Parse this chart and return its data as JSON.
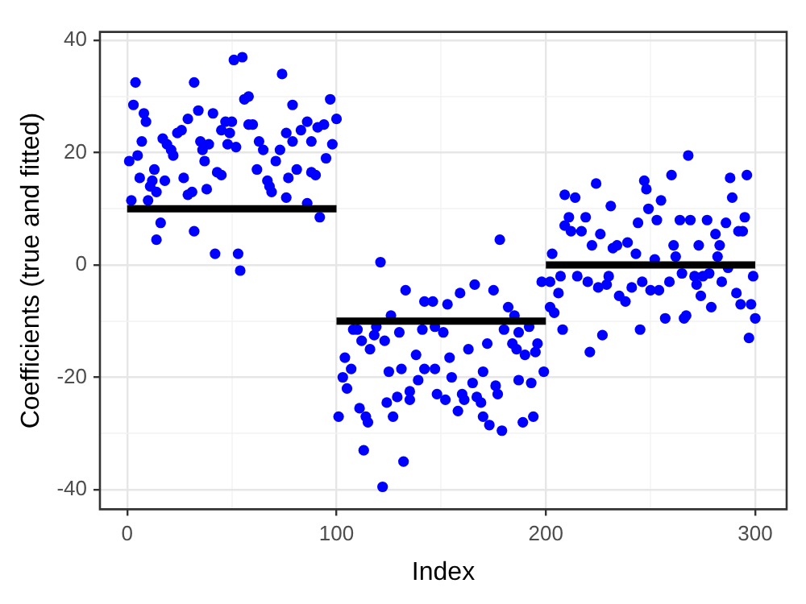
{
  "chart_data": {
    "type": "scatter",
    "xlabel": "Index",
    "ylabel": "Coefficients (true and fitted)",
    "xlim": [
      -13,
      315
    ],
    "ylim": [
      -43.5,
      41.5
    ],
    "xticks": [
      0,
      {
        "value": 50,
        "label": null
      },
      100,
      {
        "value": 150,
        "label": null
      },
      200,
      {
        "value": 250,
        "label": null
      },
      300
    ],
    "yticks": [
      -40,
      {
        "value": -30,
        "label": null
      },
      -20,
      {
        "value": -10,
        "label": null
      },
      0,
      {
        "value": 10,
        "label": null
      },
      20,
      {
        "value": 30,
        "label": null
      },
      40
    ],
    "grid": true,
    "legend": false,
    "marker": "circle",
    "line_style": "solid",
    "series": [
      {
        "color": "#0000ff",
        "x": [
          4,
          3,
          1,
          2,
          5,
          6,
          7,
          8,
          9,
          10,
          11,
          12,
          13,
          14,
          14,
          16,
          17,
          18,
          19,
          21,
          22,
          24,
          26,
          27,
          29,
          29,
          31,
          32,
          32,
          34,
          35,
          36,
          37,
          38,
          39,
          41,
          42,
          43,
          45,
          45,
          47,
          48,
          49,
          50,
          51,
          52,
          53,
          54,
          55,
          56,
          58,
          58,
          60,
          62,
          63,
          65,
          67,
          68,
          69,
          71,
          73,
          74,
          76,
          76,
          77,
          79,
          81,
          79,
          83,
          86,
          86,
          88,
          88,
          90,
          91,
          92,
          94,
          95,
          97,
          98,
          100,
          121,
          101,
          103,
          104,
          105,
          107,
          108,
          110,
          112,
          111,
          114,
          115,
          113,
          116,
          118,
          119,
          122,
          123,
          124,
          125,
          126,
          127,
          129,
          130,
          131,
          132,
          133,
          135,
          135,
          138,
          139,
          141,
          142,
          142,
          146,
          147,
          148,
          147,
          151,
          152,
          153,
          154,
          155,
          158,
          159,
          160,
          161,
          163,
          165,
          166,
          167,
          169,
          170,
          170,
          172,
          173,
          175,
          176,
          177,
          178,
          179,
          180,
          182,
          184,
          185,
          186,
          187,
          187,
          189,
          190,
          192,
          193,
          194,
          195,
          196,
          199,
          198,
          202,
          203,
          202,
          204,
          206,
          207,
          208,
          209,
          209,
          211,
          212,
          214,
          215,
          217,
          219,
          220,
          221,
          222,
          224,
          225,
          226,
          227,
          229,
          230,
          231,
          232,
          234,
          235,
          238,
          239,
          241,
          243,
          244,
          245,
          246,
          247,
          248,
          249,
          250,
          253,
          254,
          252,
          255,
          257,
          259,
          260,
          261,
          262,
          264,
          265,
          266,
          267,
          268,
          269,
          271,
          272,
          273,
          274,
          275,
          277,
          278,
          279,
          281,
          282,
          283,
          284,
          286,
          287,
          288,
          289,
          291,
          292,
          293,
          294,
          295,
          296,
          297,
          298,
          299,
          300
        ],
        "values": [
          32.5,
          28.5,
          18.5,
          11.5,
          19.5,
          15.5,
          22,
          27,
          25.5,
          11.5,
          14,
          15,
          17,
          13,
          4.5,
          7.5,
          22.5,
          15,
          21.5,
          20.5,
          19.5,
          23.5,
          24,
          15.5,
          26,
          12.5,
          13,
          32.5,
          6,
          27.5,
          22,
          20.5,
          18.5,
          13.5,
          21.5,
          27,
          2,
          16.5,
          24,
          16,
          25.5,
          21.5,
          23.5,
          25.5,
          36.5,
          21,
          2,
          -1,
          37,
          29.5,
          30,
          25,
          25,
          17,
          22,
          20.5,
          15,
          14,
          13,
          18.5,
          20.5,
          34,
          23.5,
          12,
          15.5,
          28.5,
          17,
          22,
          24,
          25.5,
          11,
          22,
          16.5,
          16,
          24.5,
          8.5,
          25,
          19,
          29.5,
          21.5,
          26,
          0.5,
          -27,
          -20,
          -16.5,
          -22,
          -18.5,
          -11.5,
          -11.5,
          -13.5,
          -25.5,
          -27,
          -28,
          -33,
          -15,
          -12.5,
          -11,
          -39.5,
          -13.5,
          -24.5,
          -19,
          -9,
          -27,
          -23.5,
          -12,
          -18.5,
          -35,
          -4.5,
          -22.5,
          -24,
          -16,
          -20.5,
          -11.5,
          -6.5,
          -18.5,
          -6.5,
          -18.5,
          -23,
          -11,
          -12,
          -24,
          -7,
          -16.5,
          -20,
          -26,
          -5,
          -23,
          -24,
          -15,
          -21,
          -3.5,
          -23.5,
          -24.5,
          -19,
          -27,
          -14,
          -28.5,
          -4.5,
          -21.5,
          -23,
          4.5,
          -29.5,
          -11.5,
          -7.5,
          -14,
          -9,
          -15,
          -12,
          -20.5,
          -28,
          -16,
          -11,
          -21,
          -27,
          -15.5,
          -14,
          -19,
          -3,
          -3,
          2,
          -7.5,
          -8.5,
          -5,
          -2,
          -11.5,
          7,
          12.5,
          8.5,
          6,
          12,
          -2,
          6,
          8.5,
          -3,
          -15.5,
          3.5,
          14.5,
          -4,
          5.5,
          -12.5,
          -3.5,
          -2,
          10.5,
          3,
          3.5,
          -5.5,
          -6.5,
          4,
          -4,
          2,
          7.5,
          -11.5,
          -3,
          15,
          13.5,
          10,
          -4.5,
          8,
          -4.5,
          1,
          11.5,
          -9.5,
          -3,
          16,
          3.5,
          1.5,
          8,
          -1.5,
          -9.5,
          -9,
          19.5,
          8,
          -2,
          -3.5,
          3.5,
          -5.5,
          -2,
          8,
          -1.5,
          -7.5,
          5.5,
          1.5,
          3.5,
          -3,
          7.5,
          -0.5,
          15.5,
          12,
          -5,
          6,
          -7,
          6,
          8.5,
          16,
          -13,
          -7,
          -2,
          -9.5
        ]
      },
      {
        "type": "line",
        "color": "#000000",
        "marker": "none",
        "x": [
          0,
          100
        ],
        "values": [
          10,
          10
        ]
      },
      {
        "type": "line",
        "color": "#000000",
        "marker": "none",
        "x": [
          100,
          200
        ],
        "values": [
          -10,
          -10
        ]
      },
      {
        "type": "line",
        "color": "#000000",
        "marker": "none",
        "x": [
          200,
          300
        ],
        "values": [
          0,
          0
        ]
      }
    ]
  }
}
